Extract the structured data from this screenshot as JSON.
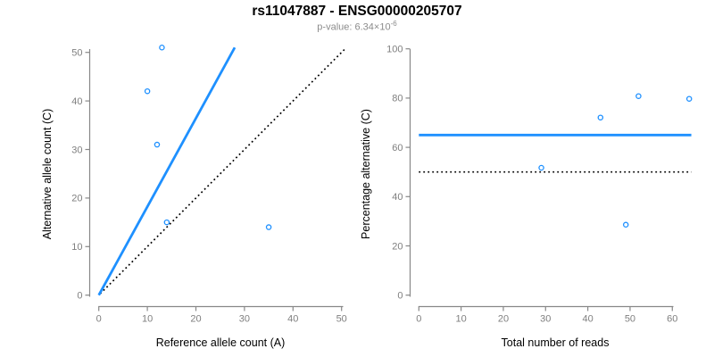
{
  "header": {
    "title": "rs11047887 - ENSG00000205707",
    "pvalue_label": "p-value: ",
    "pvalue_base": "6.34×10",
    "pvalue_exponent": "-6"
  },
  "chart_data": [
    {
      "type": "scatter",
      "xlabel": "Reference allele count (A)",
      "ylabel": "Alternative allele count (C)",
      "xlim": [
        0,
        50.7
      ],
      "ylim": [
        0,
        51
      ],
      "xticks": [
        0,
        10,
        20,
        30,
        40,
        50
      ],
      "yticks": [
        0,
        10,
        20,
        30,
        40,
        50
      ],
      "points": [
        [
          10,
          42
        ],
        [
          12,
          31
        ],
        [
          13,
          51
        ],
        [
          14,
          15
        ],
        [
          35,
          14
        ]
      ],
      "fit_line": {
        "from": [
          0,
          0
        ],
        "to": [
          28,
          51
        ]
      },
      "identity_line": {
        "from": [
          0.3,
          0.3
        ],
        "to": [
          50.6,
          50.6
        ],
        "style": "dotted"
      }
    },
    {
      "type": "scatter",
      "xlabel": "Total number of reads",
      "ylabel": "Percentage alternative (C)",
      "xlim": [
        0,
        64.5
      ],
      "ylim": [
        0,
        100
      ],
      "xticks": [
        0,
        10,
        20,
        30,
        40,
        50,
        60
      ],
      "yticks": [
        0,
        20,
        40,
        60,
        80,
        100
      ],
      "points": [
        [
          29,
          51.7
        ],
        [
          43,
          72.1
        ],
        [
          49,
          28.6
        ],
        [
          52,
          80.8
        ],
        [
          64,
          79.7
        ]
      ],
      "mean_line": {
        "y": 65
      },
      "null_line": {
        "y": 50,
        "style": "dotted"
      }
    }
  ],
  "colors": {
    "accent_blue": "#1E90FF",
    "axis_gray": "#888888",
    "tick_label_gray": "#7f7f7f",
    "subtitle_gray": "#8c8c8c",
    "dotted_black": "#000000"
  }
}
